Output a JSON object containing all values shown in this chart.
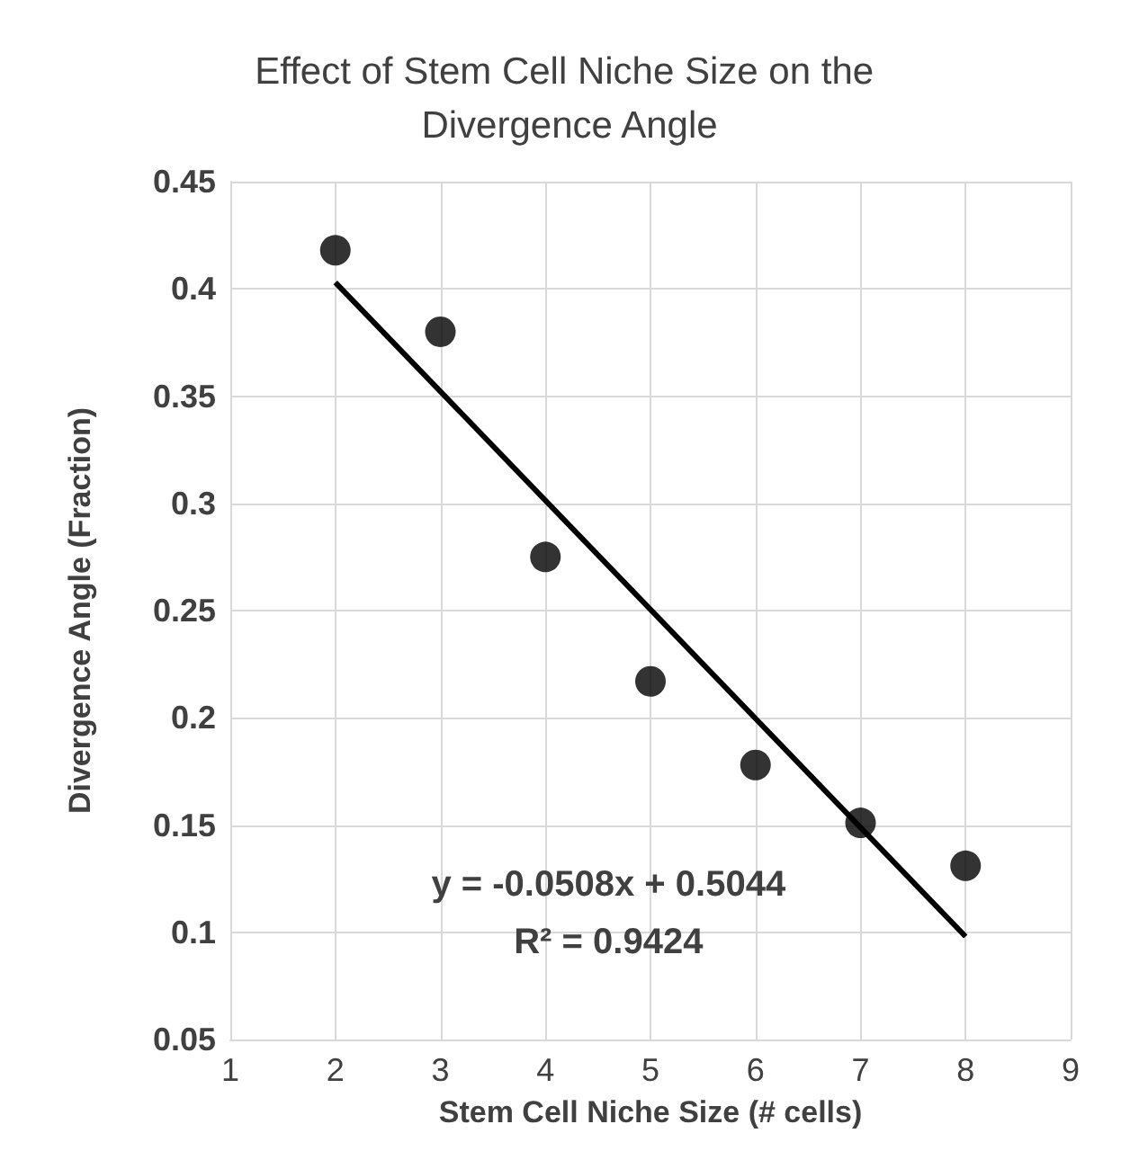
{
  "chart_data": {
    "type": "scatter",
    "title": "Effect of Stem Cell Niche Size on the Divergence Angle",
    "xlabel": "Stem Cell Niche Size (# cells)",
    "ylabel": "Divergence Angle (Fraction)",
    "series": [
      {
        "color": "#000000",
        "marker": "circle",
        "x": [
          2,
          3,
          4,
          5,
          6,
          7,
          8
        ],
        "values": [
          0.418,
          0.38,
          0.275,
          0.217,
          0.178,
          0.151,
          0.131
        ]
      },
      {
        "type": "line",
        "color": "#000000",
        "marker": "none",
        "line_style": "solid",
        "x": [
          2,
          8
        ],
        "values": [
          0.403,
          0.098
        ]
      }
    ],
    "xlim": [
      1,
      9
    ],
    "xticks": [
      1,
      2,
      3,
      4,
      5,
      6,
      7,
      8,
      9
    ],
    "ylim": [
      0.05,
      0.45
    ],
    "yticks": [
      0.05,
      0.1,
      0.15,
      0.2,
      0.25,
      0.3,
      0.35,
      0.4,
      0.45
    ],
    "grid": true,
    "annotations": [
      "y = -0.0508x + 0.5044",
      "R² = 0.9424"
    ]
  }
}
